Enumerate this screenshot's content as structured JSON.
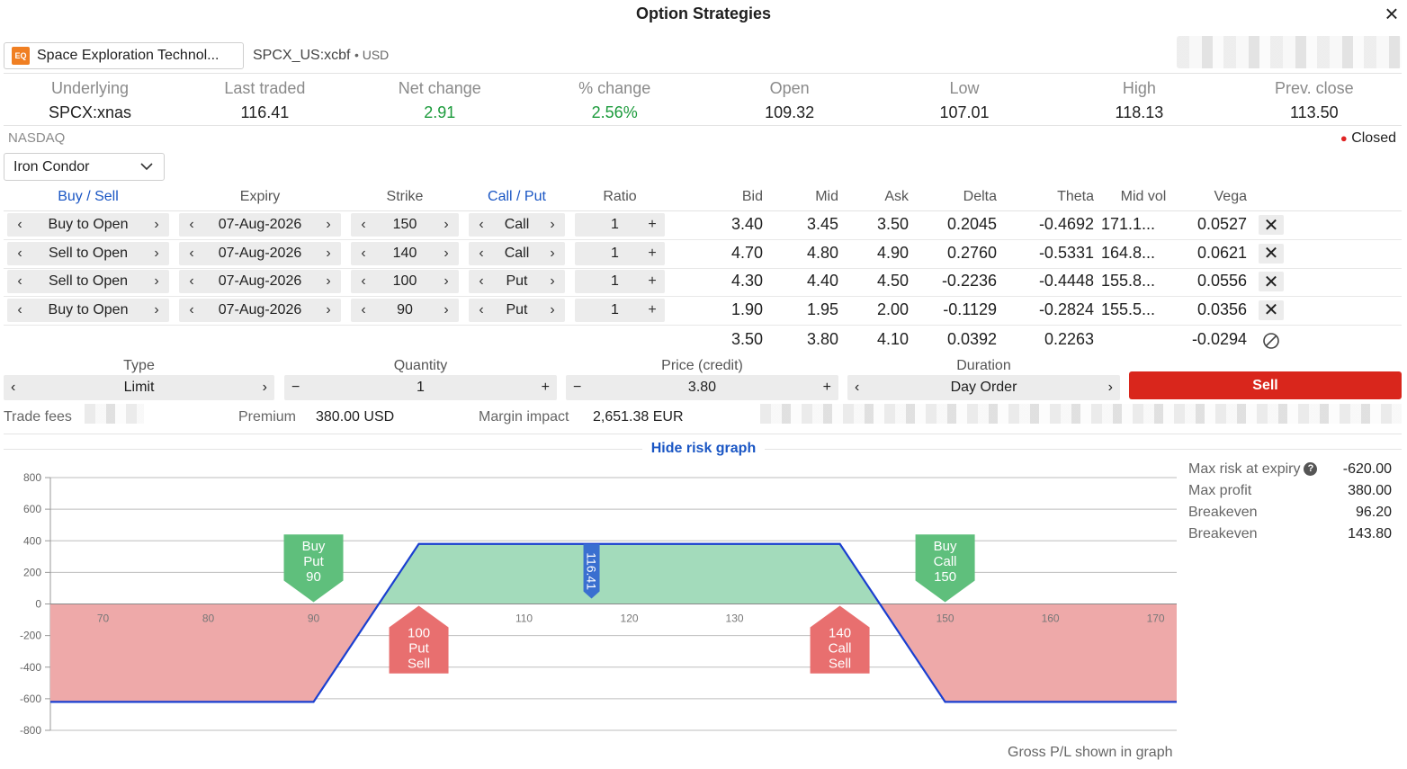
{
  "window": {
    "title": "Option Strategies",
    "close_icon": "×"
  },
  "instrument": {
    "badge": "EQ",
    "name": "Space Exploration Technol...",
    "code": "SPCX_US:xcbf",
    "currency": "USD"
  },
  "stats": [
    {
      "label": "Underlying",
      "value": "SPCX:xnas",
      "positive": false
    },
    {
      "label": "Last traded",
      "value": "116.41",
      "positive": false
    },
    {
      "label": "Net change",
      "value": "2.91",
      "positive": true
    },
    {
      "label": "% change",
      "value": "2.56%",
      "positive": true
    },
    {
      "label": "Open",
      "value": "109.32",
      "positive": false
    },
    {
      "label": "Low",
      "value": "107.01",
      "positive": false
    },
    {
      "label": "High",
      "value": "118.13",
      "positive": false
    },
    {
      "label": "Prev. close",
      "value": "113.50",
      "positive": false
    }
  ],
  "exchange": "NASDAQ",
  "market_status": "Closed",
  "strategy": "Iron Condor",
  "columns": {
    "buy_sell": "Buy / Sell",
    "expiry": "Expiry",
    "strike": "Strike",
    "call_put": "Call / Put",
    "ratio": "Ratio",
    "bid": "Bid",
    "mid": "Mid",
    "ask": "Ask",
    "delta": "Delta",
    "theta": "Theta",
    "mid_vol": "Mid vol",
    "vega": "Vega"
  },
  "legs": [
    {
      "side": "Buy to Open",
      "expiry": "07-Aug-2026",
      "strike": "150",
      "type": "Call",
      "ratio": "1",
      "bid": "3.40",
      "mid": "3.45",
      "ask": "3.50",
      "delta": "0.2045",
      "theta": "-0.4692",
      "mid_vol": "171.1...",
      "vega": "0.0527"
    },
    {
      "side": "Sell to Open",
      "expiry": "07-Aug-2026",
      "strike": "140",
      "type": "Call",
      "ratio": "1",
      "bid": "4.70",
      "mid": "4.80",
      "ask": "4.90",
      "delta": "0.2760",
      "theta": "-0.5331",
      "mid_vol": "164.8...",
      "vega": "0.0621"
    },
    {
      "side": "Sell to Open",
      "expiry": "07-Aug-2026",
      "strike": "100",
      "type": "Put",
      "ratio": "1",
      "bid": "4.30",
      "mid": "4.40",
      "ask": "4.50",
      "delta": "-0.2236",
      "theta": "-0.4448",
      "mid_vol": "155.8...",
      "vega": "0.0556"
    },
    {
      "side": "Buy to Open",
      "expiry": "07-Aug-2026",
      "strike": "90",
      "type": "Put",
      "ratio": "1",
      "bid": "1.90",
      "mid": "1.95",
      "ask": "2.00",
      "delta": "-0.1129",
      "theta": "-0.2824",
      "mid_vol": "155.5...",
      "vega": "0.0356"
    }
  ],
  "totals": {
    "bid": "3.50",
    "mid": "3.80",
    "ask": "4.10",
    "delta": "0.0392",
    "theta": "0.2263",
    "vega": "-0.0294"
  },
  "order": {
    "type_label": "Type",
    "type_value": "Limit",
    "quantity_label": "Quantity",
    "quantity_value": "1",
    "price_label": "Price (credit)",
    "price_value": "3.80",
    "duration_label": "Duration",
    "duration_value": "Day Order",
    "sell_label": "Sell"
  },
  "fees": {
    "trade_fees_label": "Trade fees",
    "premium_label": "Premium",
    "premium_value": "380.00 USD",
    "margin_label": "Margin impact",
    "margin_value": "2,651.38 EUR"
  },
  "risk_graph_toggle": "Hide risk graph",
  "risk_summary": [
    {
      "label": "Max risk at expiry",
      "value": "-620.00",
      "help": true
    },
    {
      "label": "Max profit",
      "value": "380.00",
      "help": false
    },
    {
      "label": "Breakeven",
      "value": "96.20",
      "help": false
    },
    {
      "label": "Breakeven",
      "value": "143.80",
      "help": false
    }
  ],
  "graph_note": "Gross P/L shown in graph",
  "colors": {
    "accent_blue": "#1a56c4",
    "sell_red": "#d9261c",
    "positive_green": "#1c9b3c",
    "profit_fill": "#a3dbbb",
    "loss_fill": "#eea9a9"
  },
  "chart_data": {
    "type": "area",
    "xlim": [
      65,
      172
    ],
    "ylim": [
      -800,
      800
    ],
    "yticks": [
      800,
      600,
      400,
      200,
      0,
      -200,
      -400,
      -600,
      -800
    ],
    "xticks": [
      70,
      80,
      90,
      100,
      110,
      120,
      130,
      140,
      150,
      160,
      170
    ],
    "series": [
      {
        "name": "",
        "x": [
          65,
          90,
          100,
          140,
          150,
          172
        ],
        "y": [
          -620,
          -620,
          380,
          380,
          -620,
          -620
        ]
      }
    ],
    "current_price": "116.41",
    "current_price_value": 116.41,
    "markers": [
      {
        "lines": [
          "Buy",
          "Put",
          "90"
        ],
        "x": 90,
        "kind": "buy"
      },
      {
        "lines": [
          "100",
          "Put",
          "Sell"
        ],
        "x": 100,
        "kind": "sell"
      },
      {
        "lines": [
          "140",
          "Call",
          "Sell"
        ],
        "x": 140,
        "kind": "sell"
      },
      {
        "lines": [
          "Buy",
          "Call",
          "150"
        ],
        "x": 150,
        "kind": "buy"
      }
    ]
  }
}
